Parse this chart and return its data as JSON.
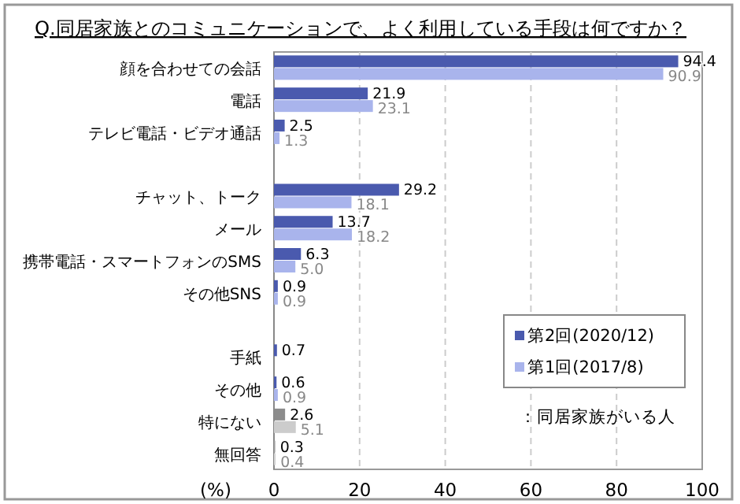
{
  "chart_data": {
    "type": "bar",
    "orientation": "horizontal",
    "title": "Q.同居家族とのコミュニケーションで、よく利用している手段は何ですか？",
    "xlabel": "(%)",
    "categories": [
      "顔を合わせての会話",
      "電話",
      "テレビ電話・ビデオ通話",
      null,
      "チャット、トーク",
      "メール",
      "携帯電話・スマートフォンのSMS",
      "その他SNS",
      null,
      "手紙",
      "その他",
      "特にない",
      "無回答"
    ],
    "series": [
      {
        "name": "第2回(2020/12)",
        "color": "#4a5aae",
        "colors": [
          "#4a5aae",
          "#4a5aae",
          "#4a5aae",
          null,
          "#4a5aae",
          "#4a5aae",
          "#4a5aae",
          "#4a5aae",
          null,
          "#4a5aae",
          "#4a5aae",
          "#8c8c8c",
          "#a0a0a0"
        ],
        "values": [
          94.4,
          21.9,
          2.5,
          null,
          29.2,
          13.7,
          6.3,
          0.9,
          null,
          0.7,
          0.6,
          2.6,
          0.3
        ],
        "value_labels": [
          "94.4",
          "21.9",
          "2.5",
          null,
          "29.2",
          "13.7",
          "6.3",
          "0.9",
          null,
          "0.7",
          "0.6",
          "2.6",
          "0.3"
        ]
      },
      {
        "name": "第1回(2017/8)",
        "color": "#a9b4ec",
        "colors": [
          "#a9b4ec",
          "#a9b4ec",
          "#a9b4ec",
          null,
          "#a9b4ec",
          "#a9b4ec",
          "#a9b4ec",
          "#a9b4ec",
          null,
          null,
          "#a9b4ec",
          "#cccccc",
          "#d4d4d4"
        ],
        "values": [
          90.9,
          23.1,
          1.3,
          null,
          18.1,
          18.2,
          5.0,
          0.9,
          null,
          null,
          0.9,
          5.1,
          0.4
        ],
        "value_labels": [
          "90.9",
          "23.1",
          "1.3",
          null,
          "18.1",
          "18.2",
          "5.0",
          "0.9",
          null,
          null,
          "0.9",
          "5.1",
          "0.4"
        ]
      }
    ],
    "xlim": [
      0,
      100
    ],
    "xticks": [
      0,
      20,
      40,
      60,
      80,
      100
    ],
    "grid": "x",
    "legend": "bottom right",
    "annotations": [
      "：同居家族がいる人"
    ]
  }
}
